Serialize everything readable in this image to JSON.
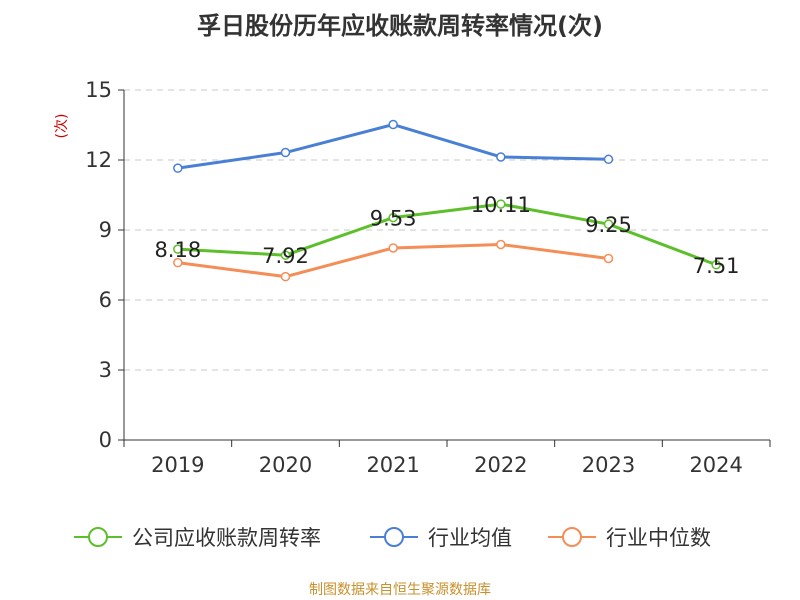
{
  "chart_data": {
    "type": "line",
    "title": "孚日股份历年应收账款周转率情况(次)",
    "ylabel": "(次)",
    "xlabel": "",
    "categories": [
      "2019",
      "2020",
      "2021",
      "2022",
      "2023",
      "2024"
    ],
    "ylim": [
      0,
      15
    ],
    "yticks": [
      0,
      3,
      6,
      9,
      12,
      15
    ],
    "grid": "horizontal dashed",
    "legend_position": "bottom",
    "series": [
      {
        "name": "公司应收账款周转率",
        "color": "#5cbf2b",
        "values": [
          8.18,
          7.92,
          9.53,
          10.11,
          9.25,
          7.51
        ],
        "labels": [
          "8.18",
          "7.92",
          "9.53",
          "10.11",
          "9.25",
          "7.51"
        ]
      },
      {
        "name": "行业均值",
        "color": "#4a7fd6",
        "values": [
          11.65,
          12.32,
          13.52,
          12.13,
          12.03,
          null
        ]
      },
      {
        "name": "行业中位数",
        "color": "#f58d57",
        "values": [
          7.6,
          7.0,
          8.23,
          8.38,
          7.78,
          null
        ]
      }
    ],
    "source": "制图数据来自恒生聚源数据库"
  }
}
